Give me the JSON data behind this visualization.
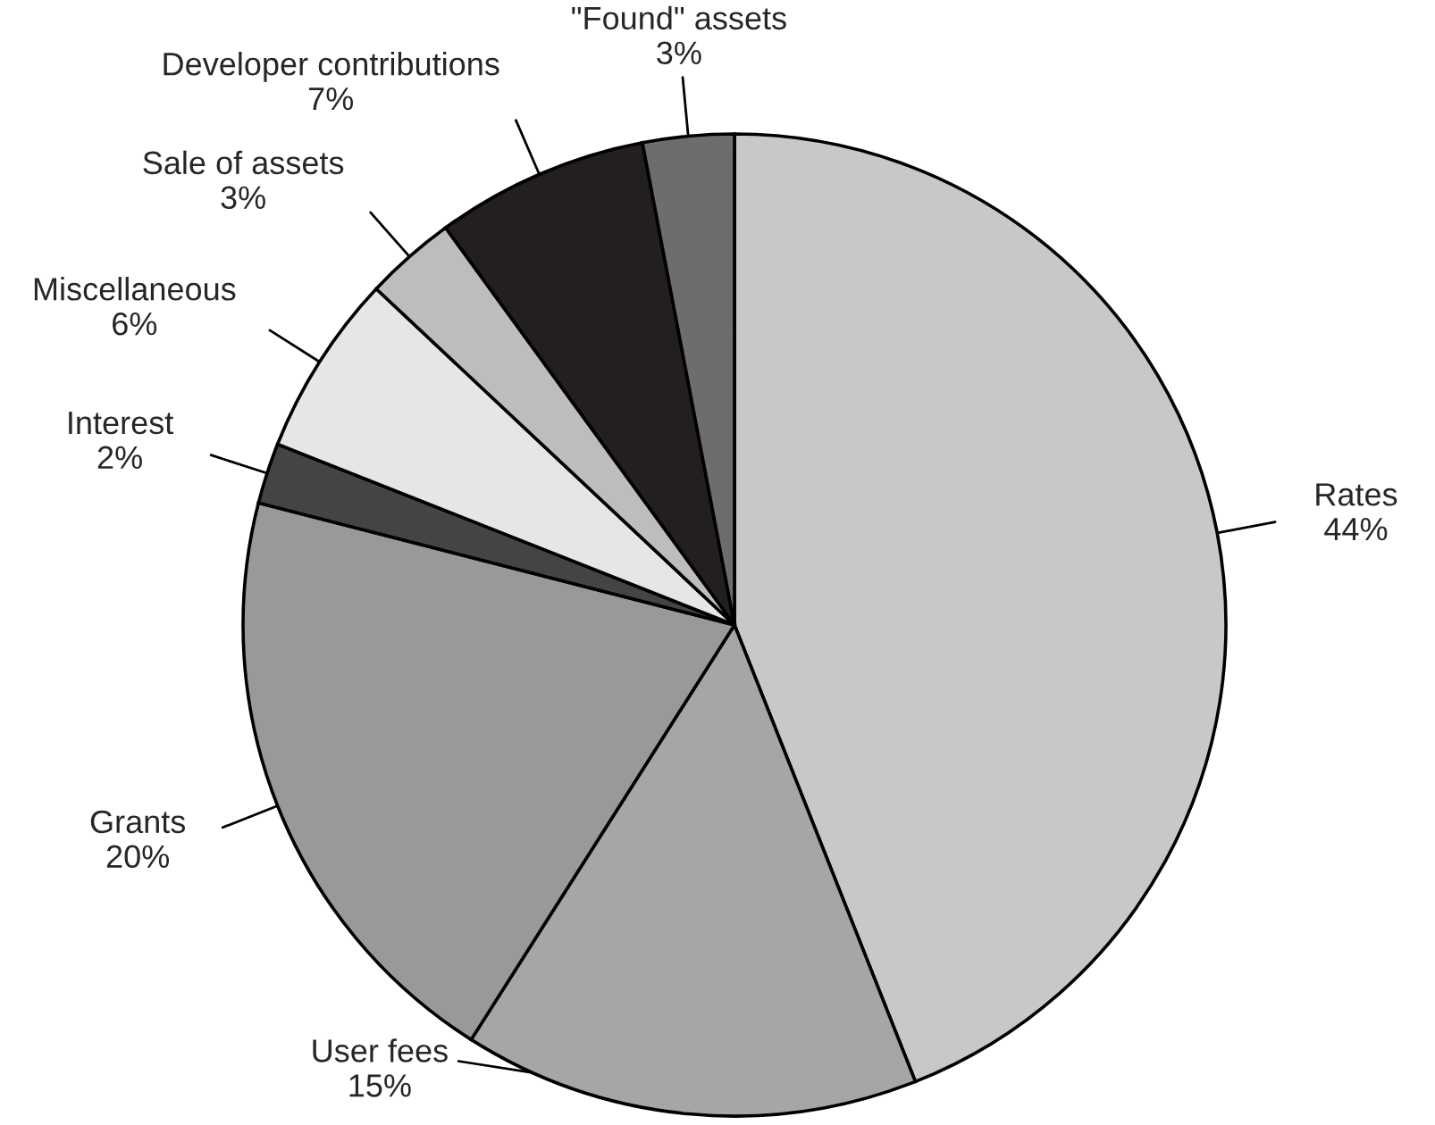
{
  "chart_data": {
    "type": "pie",
    "categories": [
      "Rates",
      "User fees",
      "Grants",
      "Interest",
      "Miscellaneous",
      "Sale of assets",
      "Developer contributions",
      "\"Found\" assets"
    ],
    "values": [
      44,
      15,
      20,
      2,
      6,
      3,
      7,
      3
    ],
    "value_labels": [
      "44%",
      "15%",
      "20%",
      "2%",
      "6%",
      "3%",
      "7%",
      "3%"
    ],
    "colors": [
      "#c8c8c8",
      "#a6a6a6",
      "#999999",
      "#444444",
      "#e6e6e6",
      "#bdbdbd",
      "#231f20",
      "#6d6d6d"
    ],
    "legend": false
  }
}
